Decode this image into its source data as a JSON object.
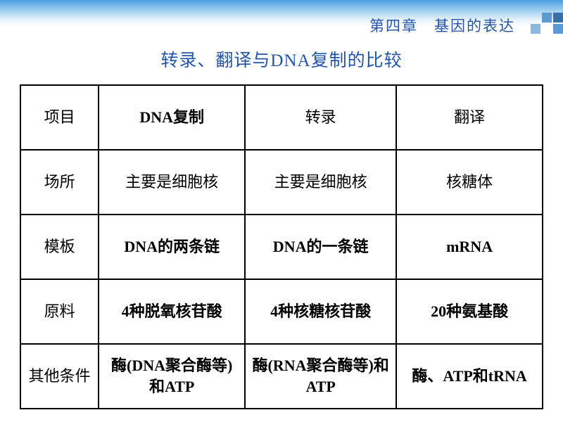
{
  "chapter": "第四章　基因的表达",
  "title": "转录、翻译与DNA复制的比较",
  "table": {
    "columns": [
      "项目",
      "DNA复制",
      "转录",
      "翻译"
    ],
    "rows": [
      [
        "场所",
        "主要是细胞核",
        "主要是细胞核",
        "核糖体"
      ],
      [
        "模板",
        "DNA的两条链",
        "DNA的一条链",
        "mRNA"
      ],
      [
        "原料",
        "4种脱氧核苷酸",
        "4种核糖核苷酸",
        "20种氨基酸"
      ],
      [
        "其他条件",
        "酶(DNA聚合酶等)和ATP",
        "酶(RNA聚合酶等)和ATP",
        "酶、ATP和tRNA"
      ]
    ],
    "bold_cells": [
      [
        0,
        1
      ],
      [
        2,
        1
      ],
      [
        2,
        2
      ],
      [
        2,
        3
      ],
      [
        3,
        1
      ],
      [
        3,
        2
      ],
      [
        3,
        3
      ],
      [
        4,
        1
      ],
      [
        4,
        2
      ],
      [
        4,
        3
      ]
    ]
  },
  "colors": {
    "header_blue": "#2255aa",
    "border": "#000000",
    "bg": "#ffffff"
  }
}
